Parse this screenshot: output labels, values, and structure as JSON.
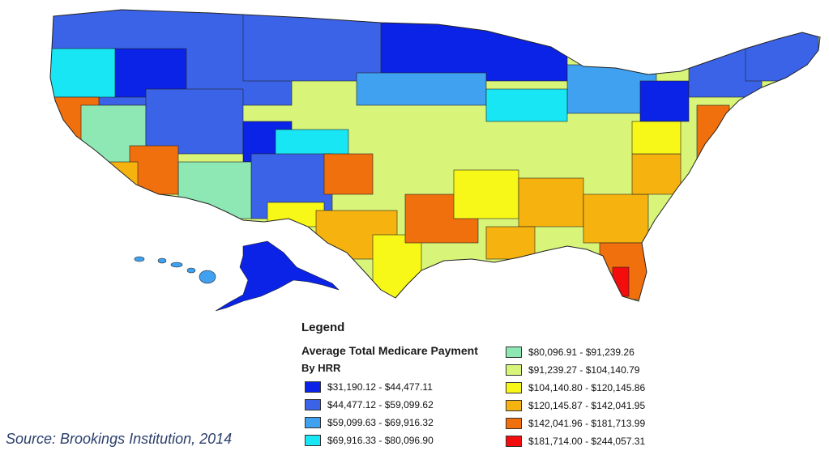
{
  "legend": {
    "title": "Legend",
    "subtitle": "Average Total Medicare Payment",
    "subtitle2": "By HRR",
    "items": [
      {
        "label": "$31,190.12 - $44,477.11",
        "color": "#0a23e6"
      },
      {
        "label": "$44,477.12 - $59,099.62",
        "color": "#3b63e8"
      },
      {
        "label": "$59,099.63 - $69,916.32",
        "color": "#3fa1f0"
      },
      {
        "label": "$69,916.33 - $80,096.90",
        "color": "#19e6f5"
      },
      {
        "label": "$80,096.91 - $91,239.26",
        "color": "#8de8b4"
      },
      {
        "label": "$91,239.27 - $104,140.79",
        "color": "#d8f57a"
      },
      {
        "label": "$104,140.80 - $120,145.86",
        "color": "#f7f718"
      },
      {
        "label": "$120,145.87 - $142,041.95",
        "color": "#f6b30f"
      },
      {
        "label": "$142,041.96 - $181,713.99",
        "color": "#f0700e"
      },
      {
        "label": "$181,714.00 - $244,057.31",
        "color": "#f40d0d"
      }
    ]
  },
  "source": "Source: Brookings Institution, 2014"
}
